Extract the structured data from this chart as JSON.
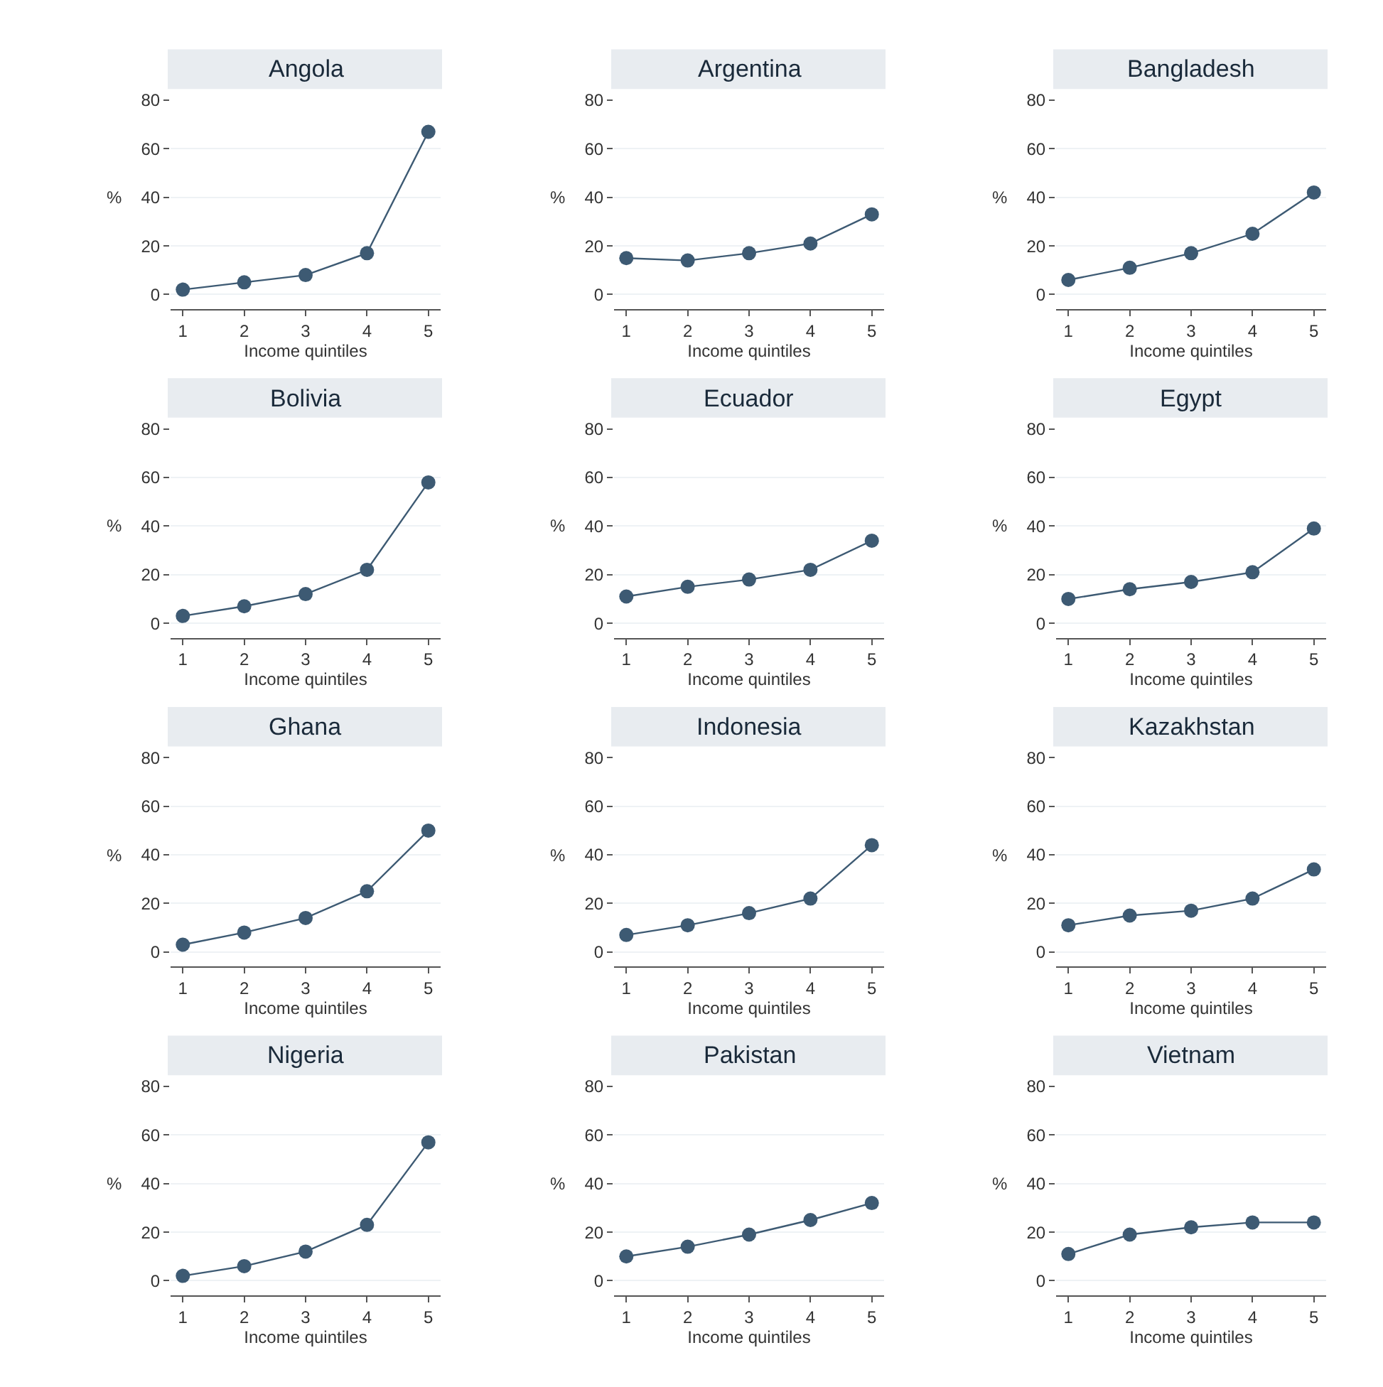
{
  "chart_data": [
    {
      "type": "line",
      "title": "Angola",
      "xlabel": "Income quintiles",
      "ylabel": "%",
      "x": [
        1,
        2,
        3,
        4,
        5
      ],
      "series": [
        {
          "color": "#3d5a73",
          "values": [
            2,
            5,
            8,
            17,
            67
          ]
        }
      ],
      "xlim": [
        0.8,
        5.2
      ],
      "xticks": [
        1,
        2,
        3,
        4,
        5
      ],
      "ylim": [
        -6,
        80
      ],
      "yticks": [
        0,
        20,
        40,
        60,
        80
      ],
      "grid": "y",
      "marker": "circle",
      "line_style": "solid"
    },
    {
      "type": "line",
      "title": "Argentina",
      "xlabel": "Income quintiles",
      "ylabel": "%",
      "x": [
        1,
        2,
        3,
        4,
        5
      ],
      "series": [
        {
          "color": "#3d5a73",
          "values": [
            15,
            14,
            17,
            21,
            33
          ]
        }
      ],
      "xlim": [
        0.8,
        5.2
      ],
      "xticks": [
        1,
        2,
        3,
        4,
        5
      ],
      "ylim": [
        -6,
        80
      ],
      "yticks": [
        0,
        20,
        40,
        60,
        80
      ],
      "grid": "y",
      "marker": "circle",
      "line_style": "solid"
    },
    {
      "type": "line",
      "title": "Bangladesh",
      "xlabel": "Income quintiles",
      "ylabel": "%",
      "x": [
        1,
        2,
        3,
        4,
        5
      ],
      "series": [
        {
          "color": "#3d5a73",
          "values": [
            6,
            11,
            17,
            25,
            42
          ]
        }
      ],
      "xlim": [
        0.8,
        5.2
      ],
      "xticks": [
        1,
        2,
        3,
        4,
        5
      ],
      "ylim": [
        -6,
        80
      ],
      "yticks": [
        0,
        20,
        40,
        60,
        80
      ],
      "grid": "y",
      "marker": "circle",
      "line_style": "solid"
    },
    {
      "type": "line",
      "title": "Bolivia",
      "xlabel": "Income quintiles",
      "ylabel": "%",
      "x": [
        1,
        2,
        3,
        4,
        5
      ],
      "series": [
        {
          "color": "#3d5a73",
          "values": [
            3,
            7,
            12,
            22,
            58
          ]
        }
      ],
      "xlim": [
        0.8,
        5.2
      ],
      "xticks": [
        1,
        2,
        3,
        4,
        5
      ],
      "ylim": [
        -6,
        80
      ],
      "yticks": [
        0,
        20,
        40,
        60,
        80
      ],
      "grid": "y",
      "marker": "circle",
      "line_style": "solid"
    },
    {
      "type": "line",
      "title": "Ecuador",
      "xlabel": "Income quintiles",
      "ylabel": "%",
      "x": [
        1,
        2,
        3,
        4,
        5
      ],
      "series": [
        {
          "color": "#3d5a73",
          "values": [
            11,
            15,
            18,
            22,
            34
          ]
        }
      ],
      "xlim": [
        0.8,
        5.2
      ],
      "xticks": [
        1,
        2,
        3,
        4,
        5
      ],
      "ylim": [
        -6,
        80
      ],
      "yticks": [
        0,
        20,
        40,
        60,
        80
      ],
      "grid": "y",
      "marker": "circle",
      "line_style": "solid"
    },
    {
      "type": "line",
      "title": "Egypt",
      "xlabel": "Income quintiles",
      "ylabel": "%",
      "x": [
        1,
        2,
        3,
        4,
        5
      ],
      "series": [
        {
          "color": "#3d5a73",
          "values": [
            10,
            14,
            17,
            21,
            39
          ]
        }
      ],
      "xlim": [
        0.8,
        5.2
      ],
      "xticks": [
        1,
        2,
        3,
        4,
        5
      ],
      "ylim": [
        -6,
        80
      ],
      "yticks": [
        0,
        20,
        40,
        60,
        80
      ],
      "grid": "y",
      "marker": "circle",
      "line_style": "solid"
    },
    {
      "type": "line",
      "title": "Ghana",
      "xlabel": "Income quintiles",
      "ylabel": "%",
      "x": [
        1,
        2,
        3,
        4,
        5
      ],
      "series": [
        {
          "color": "#3d5a73",
          "values": [
            3,
            8,
            14,
            25,
            50
          ]
        }
      ],
      "xlim": [
        0.8,
        5.2
      ],
      "xticks": [
        1,
        2,
        3,
        4,
        5
      ],
      "ylim": [
        -6,
        80
      ],
      "yticks": [
        0,
        20,
        40,
        60,
        80
      ],
      "grid": "y",
      "marker": "circle",
      "line_style": "solid"
    },
    {
      "type": "line",
      "title": "Indonesia",
      "xlabel": "Income quintiles",
      "ylabel": "%",
      "x": [
        1,
        2,
        3,
        4,
        5
      ],
      "series": [
        {
          "color": "#3d5a73",
          "values": [
            7,
            11,
            16,
            22,
            44
          ]
        }
      ],
      "xlim": [
        0.8,
        5.2
      ],
      "xticks": [
        1,
        2,
        3,
        4,
        5
      ],
      "ylim": [
        -6,
        80
      ],
      "yticks": [
        0,
        20,
        40,
        60,
        80
      ],
      "grid": "y",
      "marker": "circle",
      "line_style": "solid"
    },
    {
      "type": "line",
      "title": "Kazakhstan",
      "xlabel": "Income quintiles",
      "ylabel": "%",
      "x": [
        1,
        2,
        3,
        4,
        5
      ],
      "series": [
        {
          "color": "#3d5a73",
          "values": [
            11,
            15,
            17,
            22,
            34
          ]
        }
      ],
      "xlim": [
        0.8,
        5.2
      ],
      "xticks": [
        1,
        2,
        3,
        4,
        5
      ],
      "ylim": [
        -6,
        80
      ],
      "yticks": [
        0,
        20,
        40,
        60,
        80
      ],
      "grid": "y",
      "marker": "circle",
      "line_style": "solid"
    },
    {
      "type": "line",
      "title": "Nigeria",
      "xlabel": "Income quintiles",
      "ylabel": "%",
      "x": [
        1,
        2,
        3,
        4,
        5
      ],
      "series": [
        {
          "color": "#3d5a73",
          "values": [
            2,
            6,
            12,
            23,
            57
          ]
        }
      ],
      "xlim": [
        0.8,
        5.2
      ],
      "xticks": [
        1,
        2,
        3,
        4,
        5
      ],
      "ylim": [
        -6,
        80
      ],
      "yticks": [
        0,
        20,
        40,
        60,
        80
      ],
      "grid": "y",
      "marker": "circle",
      "line_style": "solid"
    },
    {
      "type": "line",
      "title": "Pakistan",
      "xlabel": "Income quintiles",
      "ylabel": "%",
      "x": [
        1,
        2,
        3,
        4,
        5
      ],
      "series": [
        {
          "color": "#3d5a73",
          "values": [
            10,
            14,
            19,
            25,
            32
          ]
        }
      ],
      "xlim": [
        0.8,
        5.2
      ],
      "xticks": [
        1,
        2,
        3,
        4,
        5
      ],
      "ylim": [
        -6,
        80
      ],
      "yticks": [
        0,
        20,
        40,
        60,
        80
      ],
      "grid": "y",
      "marker": "circle",
      "line_style": "solid"
    },
    {
      "type": "line",
      "title": "Vietnam",
      "xlabel": "Income quintiles",
      "ylabel": "%",
      "x": [
        1,
        2,
        3,
        4,
        5
      ],
      "series": [
        {
          "color": "#3d5a73",
          "values": [
            11,
            19,
            22,
            24,
            24
          ]
        }
      ],
      "xlim": [
        0.8,
        5.2
      ],
      "xticks": [
        1,
        2,
        3,
        4,
        5
      ],
      "ylim": [
        -6,
        80
      ],
      "yticks": [
        0,
        20,
        40,
        60,
        80
      ],
      "grid": "y",
      "marker": "circle",
      "line_style": "solid"
    }
  ]
}
